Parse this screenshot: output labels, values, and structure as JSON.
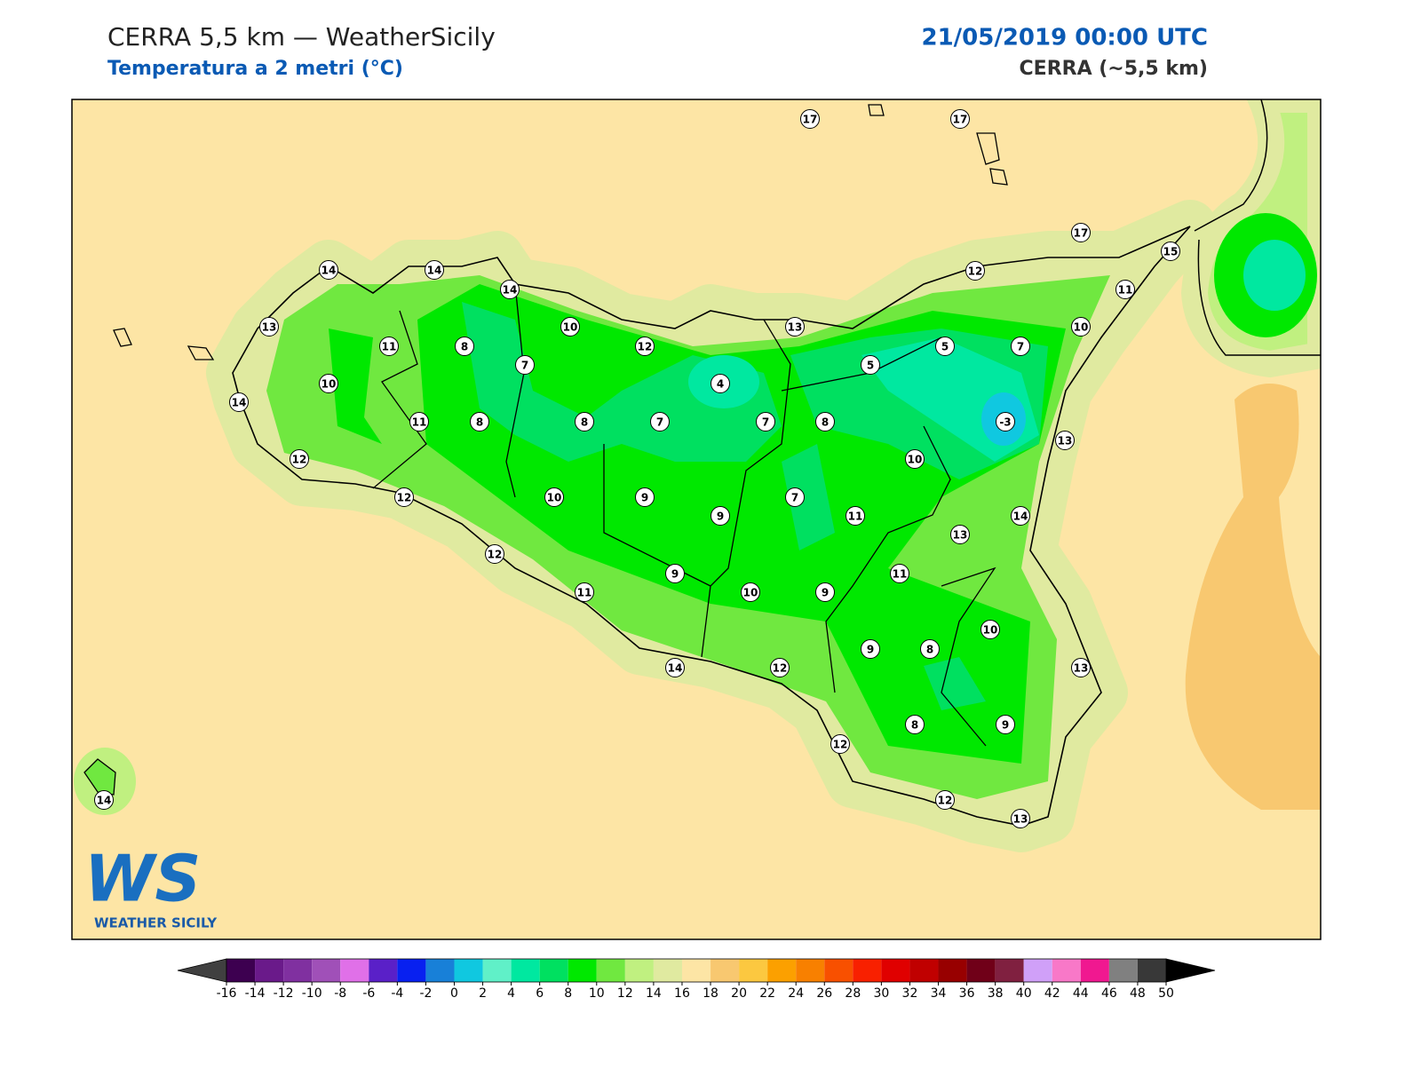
{
  "header": {
    "title": "CERRA 5,5 km — WeatherSicily",
    "subtitle": "Temperatura a 2 metri (°C)",
    "datetime": "21/05/2019 00:00 UTC",
    "model": "CERRA (~5,5 km)"
  },
  "stations": [
    17,
    17,
    17,
    15,
    14,
    14,
    14,
    12,
    11,
    13,
    10,
    13,
    10,
    11,
    8,
    12,
    5,
    7,
    7,
    5,
    10,
    4,
    14,
    11,
    8,
    8,
    7,
    7,
    8,
    -3,
    13,
    12,
    10,
    12,
    10,
    9,
    7,
    9,
    11,
    14,
    13,
    12,
    9,
    11,
    11,
    10,
    9,
    10,
    9,
    8,
    14,
    12,
    13,
    8,
    9,
    12,
    12,
    13,
    14
  ],
  "colorbar": {
    "ticks": [
      -16,
      -14,
      -12,
      -10,
      -8,
      -6,
      -4,
      -2,
      0,
      2,
      4,
      6,
      8,
      10,
      12,
      14,
      16,
      18,
      20,
      22,
      24,
      26,
      28,
      30,
      32,
      34,
      36,
      38,
      40,
      42,
      44,
      46,
      48,
      50
    ],
    "colors": [
      "#3d0050",
      "#6a1a8a",
      "#8030a0",
      "#a050b8",
      "#e070e8",
      "#5a20c8",
      "#0820f0",
      "#1880d8",
      "#10c8e0",
      "#60f0c8",
      "#00e8a0",
      "#00e060",
      "#00e800",
      "#70e840",
      "#c0f080",
      "#e0eaa0",
      "#fde5a5",
      "#f8c870",
      "#fcc840",
      "#fca000",
      "#f88000",
      "#f85000",
      "#f82000",
      "#e00000",
      "#c00000",
      "#980000",
      "#700018",
      "#802040",
      "#d0a0f8",
      "#f878c8",
      "#f01890",
      "#808080",
      "#383838"
    ],
    "under": "#404040",
    "over": "#000000"
  },
  "logo": {
    "mark": "WS",
    "text": "WEATHER SICILY"
  }
}
